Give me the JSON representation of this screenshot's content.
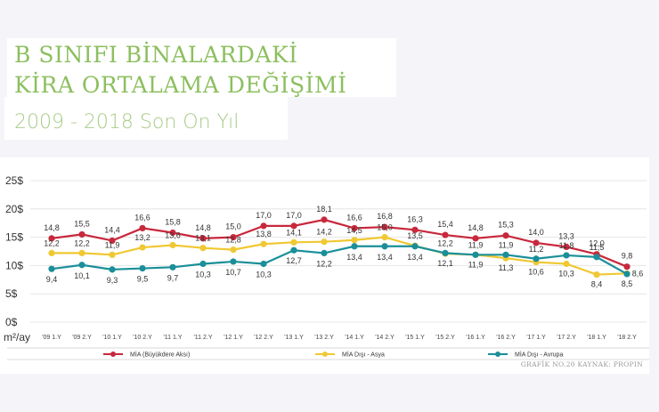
{
  "header": {
    "title_line1": "B SINIFI BİNALARDAKİ",
    "title_line2": "KİRA ORTALAMA DEĞİŞİMİ",
    "subtitle": "2009 - 2018 Son On Yıl"
  },
  "footer": {
    "source": "GRAFİK NO.20 KAYNAK: PROPIN"
  },
  "colors": {
    "title_green": "#8cbf5f",
    "series_red": "#c8283c",
    "series_yellow": "#f0c832",
    "series_teal": "#1a8f9a"
  },
  "chart_data": {
    "type": "line",
    "title": "B SINIFI BİNALARDAKİ KİRA ORTALAMA DEĞİŞİMİ - 2009 - 2018 Son On Yıl",
    "xlabel": "",
    "ylabel": "m²/ay",
    "y_unit_label": "m²/ay",
    "ylim": [
      0,
      25
    ],
    "yticks": [
      "0$",
      "5$",
      "10$",
      "15$",
      "20$",
      "25$"
    ],
    "ytick_values": [
      0,
      5,
      10,
      15,
      20,
      25
    ],
    "grid": true,
    "legend_position": "bottom",
    "categories": [
      "'09 1.Y",
      "'09 2.Y",
      "'10 1.Y",
      "'10 2.Y",
      "'11 1.Y",
      "'11 2.Y",
      "'12 1.Y",
      "'12 2.Y",
      "'13 1.Y",
      "'13 2.Y",
      "'14 1.Y",
      "'14 2.Y",
      "'15 1.Y",
      "'15 2.Y",
      "'16 1.Y",
      "'16 2.Y",
      "'17 1.Y",
      "'17 2.Y",
      "'18 1.Y",
      "'18 2.Y"
    ],
    "series": [
      {
        "name": "MİA (Büyükdere Aksı)",
        "color": "#c8283c",
        "values": [
          14.8,
          15.5,
          14.4,
          16.6,
          15.8,
          14.8,
          15.0,
          17.0,
          17.0,
          18.1,
          16.6,
          16.8,
          16.3,
          15.4,
          14.8,
          15.3,
          14.0,
          13.3,
          12.0,
          9.8
        ],
        "labels": [
          "14,8",
          "15,5",
          "14,4",
          "16,6",
          "15,8",
          "14,8",
          "15,0",
          "17,0",
          "17,0",
          "18,1",
          "16,6",
          "16,8",
          "16,3",
          "15,4",
          "14,8",
          "15,3",
          "14,0",
          "13,3",
          "12,0",
          "9,8"
        ]
      },
      {
        "name": "MİA Dışı - Asya",
        "color": "#f0c832",
        "values": [
          12.2,
          12.2,
          11.9,
          13.2,
          13.6,
          13.1,
          12.8,
          13.8,
          14.1,
          14.2,
          14.5,
          15.0,
          13.5,
          12.1,
          11.9,
          11.3,
          10.6,
          10.3,
          8.4,
          8.6
        ],
        "labels": [
          "12,2",
          "12,2",
          "11,9",
          "13,2",
          "13,6",
          "13,1",
          "12,8",
          "13,8",
          "14,1",
          "14,2",
          "14,5",
          "15,0",
          "13,5",
          "12,1",
          "11,9",
          "11,3",
          "10,6",
          "10,3",
          "8,4",
          "8,6"
        ]
      },
      {
        "name": "MİA Dışı - Avrupa",
        "color": "#1a8f9a",
        "values": [
          9.4,
          10.1,
          9.3,
          9.5,
          9.7,
          10.3,
          10.7,
          10.3,
          12.7,
          12.2,
          13.4,
          13.4,
          13.4,
          12.2,
          11.9,
          11.9,
          11.2,
          11.8,
          11.5,
          8.5
        ],
        "labels": [
          "9,4",
          "10,1",
          "9,3",
          "9,5",
          "9,7",
          "10,3",
          "10,7",
          "10,3",
          "12,7",
          "12,2",
          "13,4",
          "13,4",
          "13,4",
          "12,2",
          "11,9",
          "11,9",
          "11,2",
          "11,8",
          "11,5",
          "8,5"
        ]
      }
    ]
  }
}
